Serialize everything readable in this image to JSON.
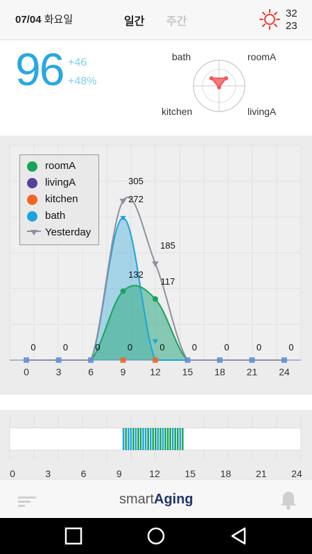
{
  "header": {
    "date_bold": "07/04",
    "date_day": "화요일",
    "tabs": [
      {
        "label": "일간",
        "active": true
      },
      {
        "label": "주간",
        "active": false
      }
    ],
    "weather_icon": "sun-icon",
    "temp_high": "32",
    "temp_low": "23"
  },
  "summary": {
    "score": "96",
    "delta_abs": "+46",
    "delta_pct": "+48%",
    "rooms": {
      "top_left": "bath",
      "top_right": "roomA",
      "bottom_left": "kitchen",
      "bottom_right": "livingA"
    }
  },
  "chart_data": {
    "type": "area",
    "x": [
      0,
      3,
      6,
      9,
      12,
      15,
      18,
      21,
      24
    ],
    "xlim": [
      0,
      24
    ],
    "grid": true,
    "legend_position": "top-left",
    "series": [
      {
        "name": "roomA",
        "color": "#1aa35a",
        "x": [
          0,
          3,
          6,
          9,
          12,
          15,
          18,
          21,
          24
        ],
        "values": [
          0,
          0,
          0,
          132,
          117,
          0,
          0,
          0,
          0
        ]
      },
      {
        "name": "livingA",
        "color": "#5a3f9c",
        "x": [
          0,
          3,
          6,
          9,
          12,
          15,
          18,
          21,
          24
        ],
        "values": [
          0,
          0,
          0,
          0,
          0,
          0,
          0,
          0,
          0
        ]
      },
      {
        "name": "kitchen",
        "color": "#f26522",
        "x": [
          0,
          3,
          6,
          9,
          12,
          15,
          18,
          21,
          24
        ],
        "values": [
          0,
          0,
          0,
          0,
          0,
          0,
          0,
          0,
          0
        ]
      },
      {
        "name": "bath",
        "color": "#1ea3dc",
        "x": [
          0,
          3,
          6,
          9,
          12,
          15,
          18,
          21,
          24
        ],
        "values": [
          0,
          0,
          0,
          272,
          0,
          0,
          0,
          0,
          0
        ]
      },
      {
        "name": "Yesterday",
        "color": "#8f8f9f",
        "x": [
          0,
          3,
          6,
          9,
          12,
          15,
          18,
          21,
          24
        ],
        "values": [
          0,
          0,
          0,
          305,
          185,
          0,
          0,
          0,
          0
        ]
      }
    ],
    "data_labels": [
      {
        "x": 1,
        "y": 0,
        "text": "0"
      },
      {
        "x": 4,
        "y": 0,
        "text": "0"
      },
      {
        "x": 7,
        "y": 0,
        "text": "0"
      },
      {
        "x": 10,
        "y": 0,
        "text": "0"
      },
      {
        "x": 13,
        "y": 0,
        "text": "0"
      },
      {
        "x": 16,
        "y": 0,
        "text": "0"
      },
      {
        "x": 19,
        "y": 0,
        "text": "0"
      },
      {
        "x": 22,
        "y": 0,
        "text": "0"
      },
      {
        "x": 25,
        "y": 0,
        "text": "0"
      },
      {
        "x": 10,
        "y": 305,
        "text": "305"
      },
      {
        "x": 10,
        "y": 272,
        "text": "272"
      },
      {
        "x": 13,
        "y": 185,
        "text": "185"
      },
      {
        "x": 10,
        "y": 132,
        "text": "132"
      },
      {
        "x": 13,
        "y": 117,
        "text": "117"
      }
    ]
  },
  "activity_strip": {
    "ticks": [
      "0",
      "3",
      "6",
      "9",
      "12",
      "15",
      "18",
      "21",
      "24"
    ],
    "active_range": [
      9.3,
      14.5
    ],
    "colors": {
      "bath": "#1ea3dc",
      "roomA": "#1aa35a"
    }
  },
  "footer": {
    "brand_light": "smart",
    "brand_bold": "Aging",
    "menu_icon": "menu-icon",
    "bell_icon": "bell-icon"
  },
  "navbar": {
    "buttons": [
      "recent-apps-icon",
      "home-icon",
      "back-icon"
    ]
  }
}
